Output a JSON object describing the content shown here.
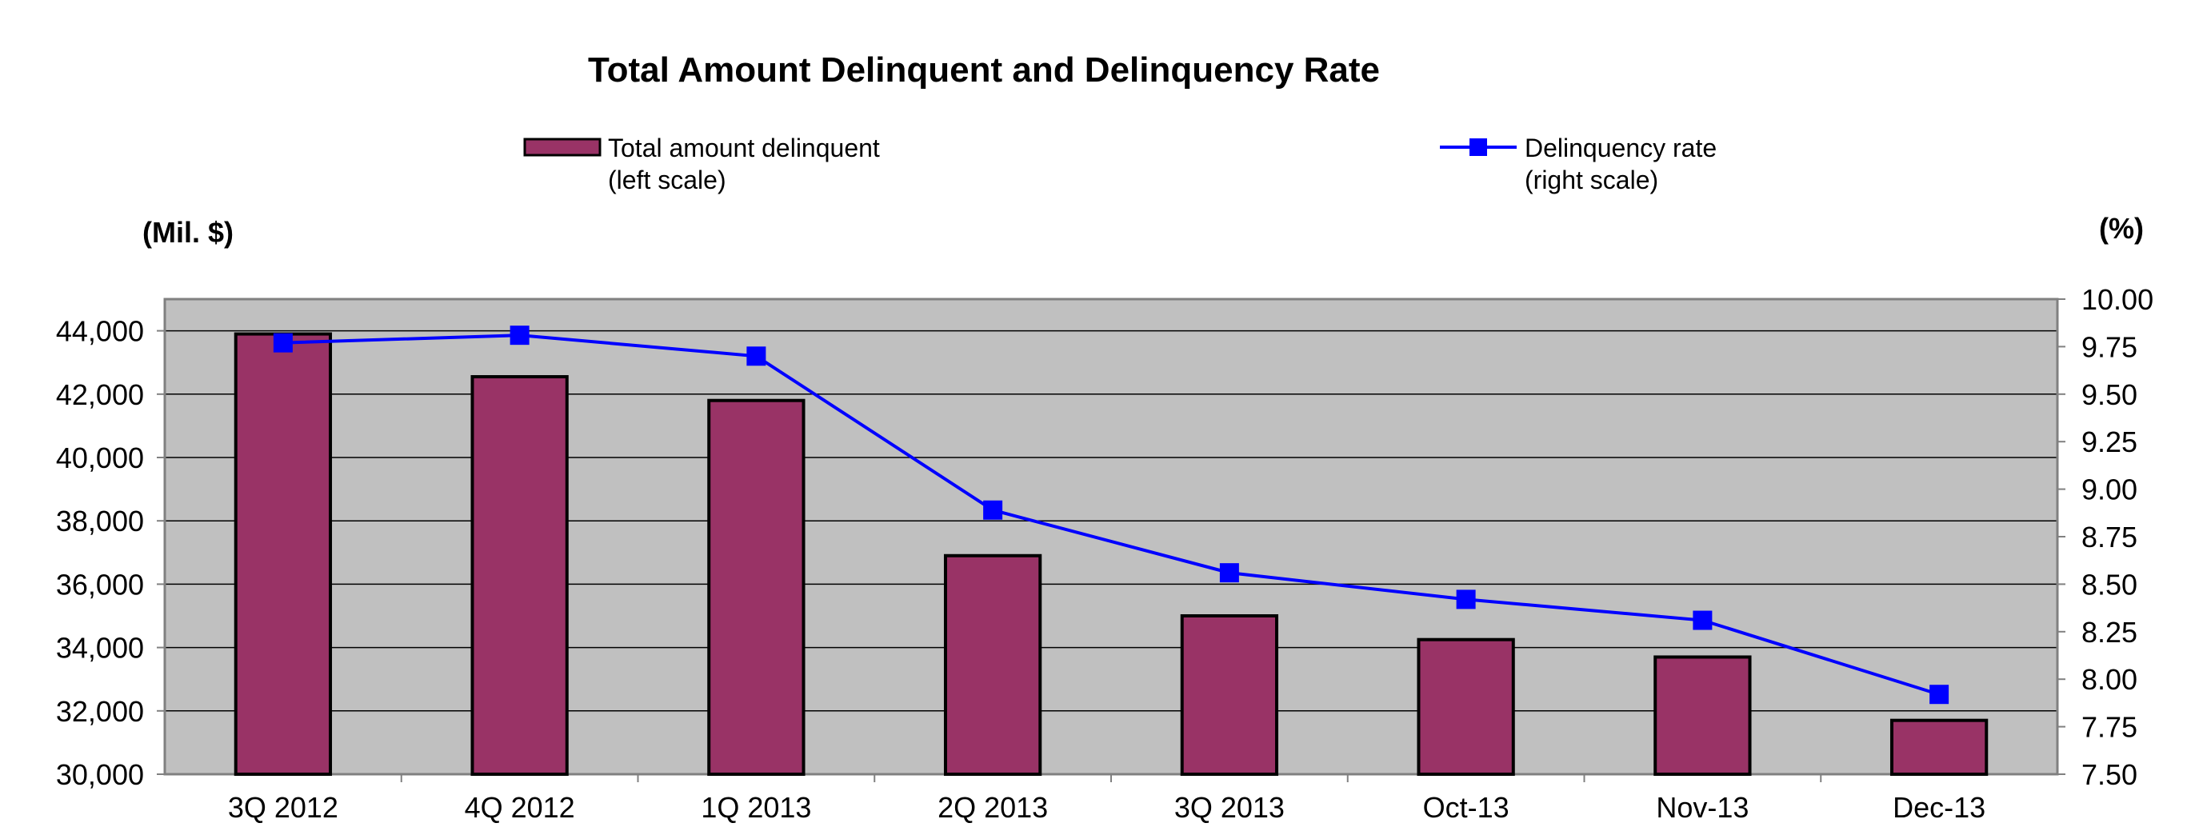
{
  "chart_data": {
    "type": "bar",
    "title": "Total Amount Delinquent and Delinquency Rate",
    "categories": [
      "3Q 2012",
      "4Q 2012",
      "1Q 2013",
      "2Q 2013",
      "3Q 2013",
      "Oct-13",
      "Nov-13",
      "Dec-13"
    ],
    "series": [
      {
        "name": "Total amount delinquent",
        "name_line2": "(left scale)",
        "type": "bar",
        "axis": "left",
        "color": "#993366",
        "values": [
          43900,
          42550,
          41800,
          36900,
          35000,
          34250,
          33700,
          31700
        ]
      },
      {
        "name": "Delinquency rate",
        "name_line2": "(right scale)",
        "type": "line",
        "axis": "right",
        "color": "#0000FF",
        "values": [
          9.77,
          9.81,
          9.7,
          8.89,
          8.56,
          8.42,
          8.31,
          7.92
        ]
      }
    ],
    "y_left": {
      "unit_label": "(Mil. $)",
      "ylim": [
        30000,
        45000
      ],
      "ticks": [
        30000,
        32000,
        34000,
        36000,
        38000,
        40000,
        42000,
        44000
      ],
      "tick_labels": [
        "30,000",
        "32,000",
        "34,000",
        "36,000",
        "38,000",
        "40,000",
        "42,000",
        "44,000"
      ]
    },
    "y_right": {
      "unit_label": "(%)",
      "ylim": [
        7.5,
        10.0
      ],
      "ticks": [
        7.5,
        7.75,
        8.0,
        8.25,
        8.5,
        8.75,
        9.0,
        9.25,
        9.5,
        9.75,
        10.0
      ],
      "tick_labels": [
        "7.50",
        "7.75",
        "8.00",
        "8.25",
        "8.50",
        "8.75",
        "9.00",
        "9.25",
        "9.50",
        "9.75",
        "10.00"
      ]
    },
    "grid": true,
    "plot_background": "#C0C0C0",
    "legend": "top"
  }
}
